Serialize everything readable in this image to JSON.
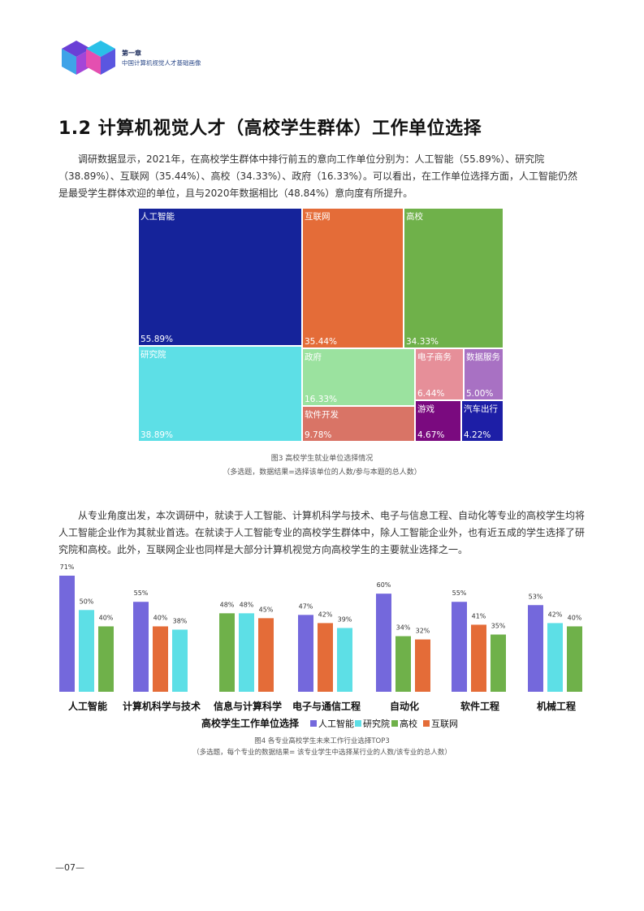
{
  "header": {
    "chapter": "第一章",
    "subtitle": "中国计算机视觉人才基础画像"
  },
  "section_title": "1.2 计算机视觉人才（高校学生群体）工作单位选择",
  "paragraph1": "调研数据显示，2021年，在高校学生群体中排行前五的意向工作单位分别为：人工智能（55.89%）、研究院（38.89%）、互联网（35.44%）、高校（34.33%）、政府（16.33%）。可以看出，在工作单位选择方面，人工智能仍然是最受学生群体欢迎的单位，且与2020年数据相比（48.84%）意向度有所提升。",
  "figure3": {
    "caption": "图3 高校学生就业单位选择情况",
    "note": "（多选题，数据结果=选择该单位的人数/参与本题的总人数）"
  },
  "paragraph2": "从专业角度出发，本次调研中，就读于人工智能、计算机科学与技术、电子与信息工程、自动化等专业的高校学生均将人工智能企业作为其就业首选。在就读于人工智能专业的高校学生群体中，除人工智能企业外，也有近五成的学生选择了研究院和高校。此外，互联网企业也同样是大部分计算机视觉方向高校学生的主要就业选择之一。",
  "figure4": {
    "caption": "图4 各专业高校学生未来工作行业选择TOP3",
    "note": "（多选题，每个专业的数据结果= 该专业学生中选择某行业的人数/该专业的总人数）"
  },
  "page_number": "—07—",
  "chart_data": [
    {
      "type": "treemap",
      "items": [
        {
          "name": "人工智能",
          "label": "55.89%",
          "value": 55.89,
          "color": "#15239a"
        },
        {
          "name": "研究院",
          "label": "38.89%",
          "value": 38.89,
          "color": "#5ddfe6"
        },
        {
          "name": "互联网",
          "label": "35.44%",
          "value": 35.44,
          "color": "#e46c38"
        },
        {
          "name": "高校",
          "label": "34.33%",
          "value": 34.33,
          "color": "#6fb14a"
        },
        {
          "name": "政府",
          "label": "16.33%",
          "value": 16.33,
          "color": "#9be29f"
        },
        {
          "name": "软件开发",
          "label": "9.78%",
          "value": 9.78,
          "color": "#d97466"
        },
        {
          "name": "电子商务",
          "label": "6.44%",
          "value": 6.44,
          "color": "#e68f99"
        },
        {
          "name": "数据服务",
          "label": "5.00%",
          "value": 5.0,
          "color": "#a871c3"
        },
        {
          "name": "游戏",
          "label": "4.67%",
          "value": 4.67,
          "color": "#7a0a7f"
        },
        {
          "name": "汽车出行",
          "label": "4.22%",
          "value": 4.22,
          "color": "#1d1ea6"
        }
      ]
    },
    {
      "type": "bar",
      "xlabel": "高校学生工作单位选择",
      "series_colors": {
        "人工智能": "#7468dc",
        "研究院": "#5ddfe6",
        "高校": "#6fb14a",
        "互联网": "#e46c38"
      },
      "legend": [
        "人工智能",
        "研究院",
        "高校",
        "互联网"
      ],
      "ylim": [
        0,
        80
      ],
      "groups": [
        {
          "category": "人工智能",
          "bars": [
            {
              "series": "人工智能",
              "value": 71
            },
            {
              "series": "研究院",
              "value": 50
            },
            {
              "series": "高校",
              "value": 40
            }
          ]
        },
        {
          "category": "计算机科学与技术",
          "bars": [
            {
              "series": "人工智能",
              "value": 55
            },
            {
              "series": "互联网",
              "value": 40
            },
            {
              "series": "研究院",
              "value": 38
            }
          ]
        },
        {
          "category": "信息与计算科学",
          "bars": [
            {
              "series": "高校",
              "value": 48
            },
            {
              "series": "研究院",
              "value": 48
            },
            {
              "series": "互联网",
              "value": 45
            }
          ]
        },
        {
          "category": "电子与通信工程",
          "bars": [
            {
              "series": "人工智能",
              "value": 47
            },
            {
              "series": "互联网",
              "value": 42
            },
            {
              "series": "研究院",
              "value": 39
            }
          ]
        },
        {
          "category": "自动化",
          "bars": [
            {
              "series": "人工智能",
              "value": 60
            },
            {
              "series": "高校",
              "value": 34
            },
            {
              "series": "互联网",
              "value": 32
            }
          ]
        },
        {
          "category": "软件工程",
          "bars": [
            {
              "series": "人工智能",
              "value": 55
            },
            {
              "series": "互联网",
              "value": 41
            },
            {
              "series": "高校",
              "value": 35
            }
          ]
        },
        {
          "category": "机械工程",
          "bars": [
            {
              "series": "人工智能",
              "value": 53
            },
            {
              "series": "研究院",
              "value": 42
            },
            {
              "series": "高校",
              "value": 40
            }
          ]
        }
      ]
    }
  ]
}
